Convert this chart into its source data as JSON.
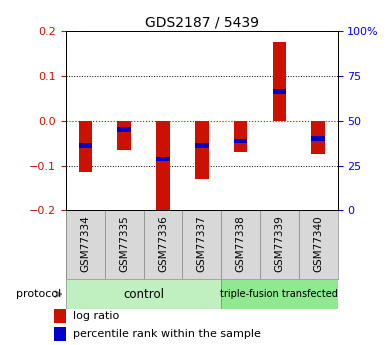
{
  "title": "GDS2187 / 5439",
  "samples": [
    "GSM77334",
    "GSM77335",
    "GSM77336",
    "GSM77337",
    "GSM77338",
    "GSM77339",
    "GSM77340"
  ],
  "log_ratio": [
    -0.115,
    -0.065,
    -0.2,
    -0.13,
    -0.07,
    0.175,
    -0.075
  ],
  "percentile_rank": [
    -0.055,
    -0.02,
    -0.085,
    -0.055,
    -0.045,
    0.065,
    -0.04
  ],
  "ctrl_count": 4,
  "ctrl_label": "control",
  "triple_label": "triple-fusion transfected",
  "ctrl_color": "#c0f0c0",
  "triple_color": "#90e890",
  "sample_bg": "#d4d4d4",
  "ylim": [
    -0.2,
    0.2
  ],
  "yticks_left": [
    -0.2,
    -0.1,
    0.0,
    0.1,
    0.2
  ],
  "bar_color_red": "#cc1100",
  "bar_color_blue": "#0000cc",
  "bar_width": 0.35,
  "blue_bar_height": 0.01,
  "background_color": "#ffffff",
  "zero_line_color": "#cc1100",
  "protocol_label": "protocol",
  "title_fontsize": 10,
  "tick_fontsize": 8,
  "label_fontsize": 7.5,
  "legend_fontsize": 8
}
